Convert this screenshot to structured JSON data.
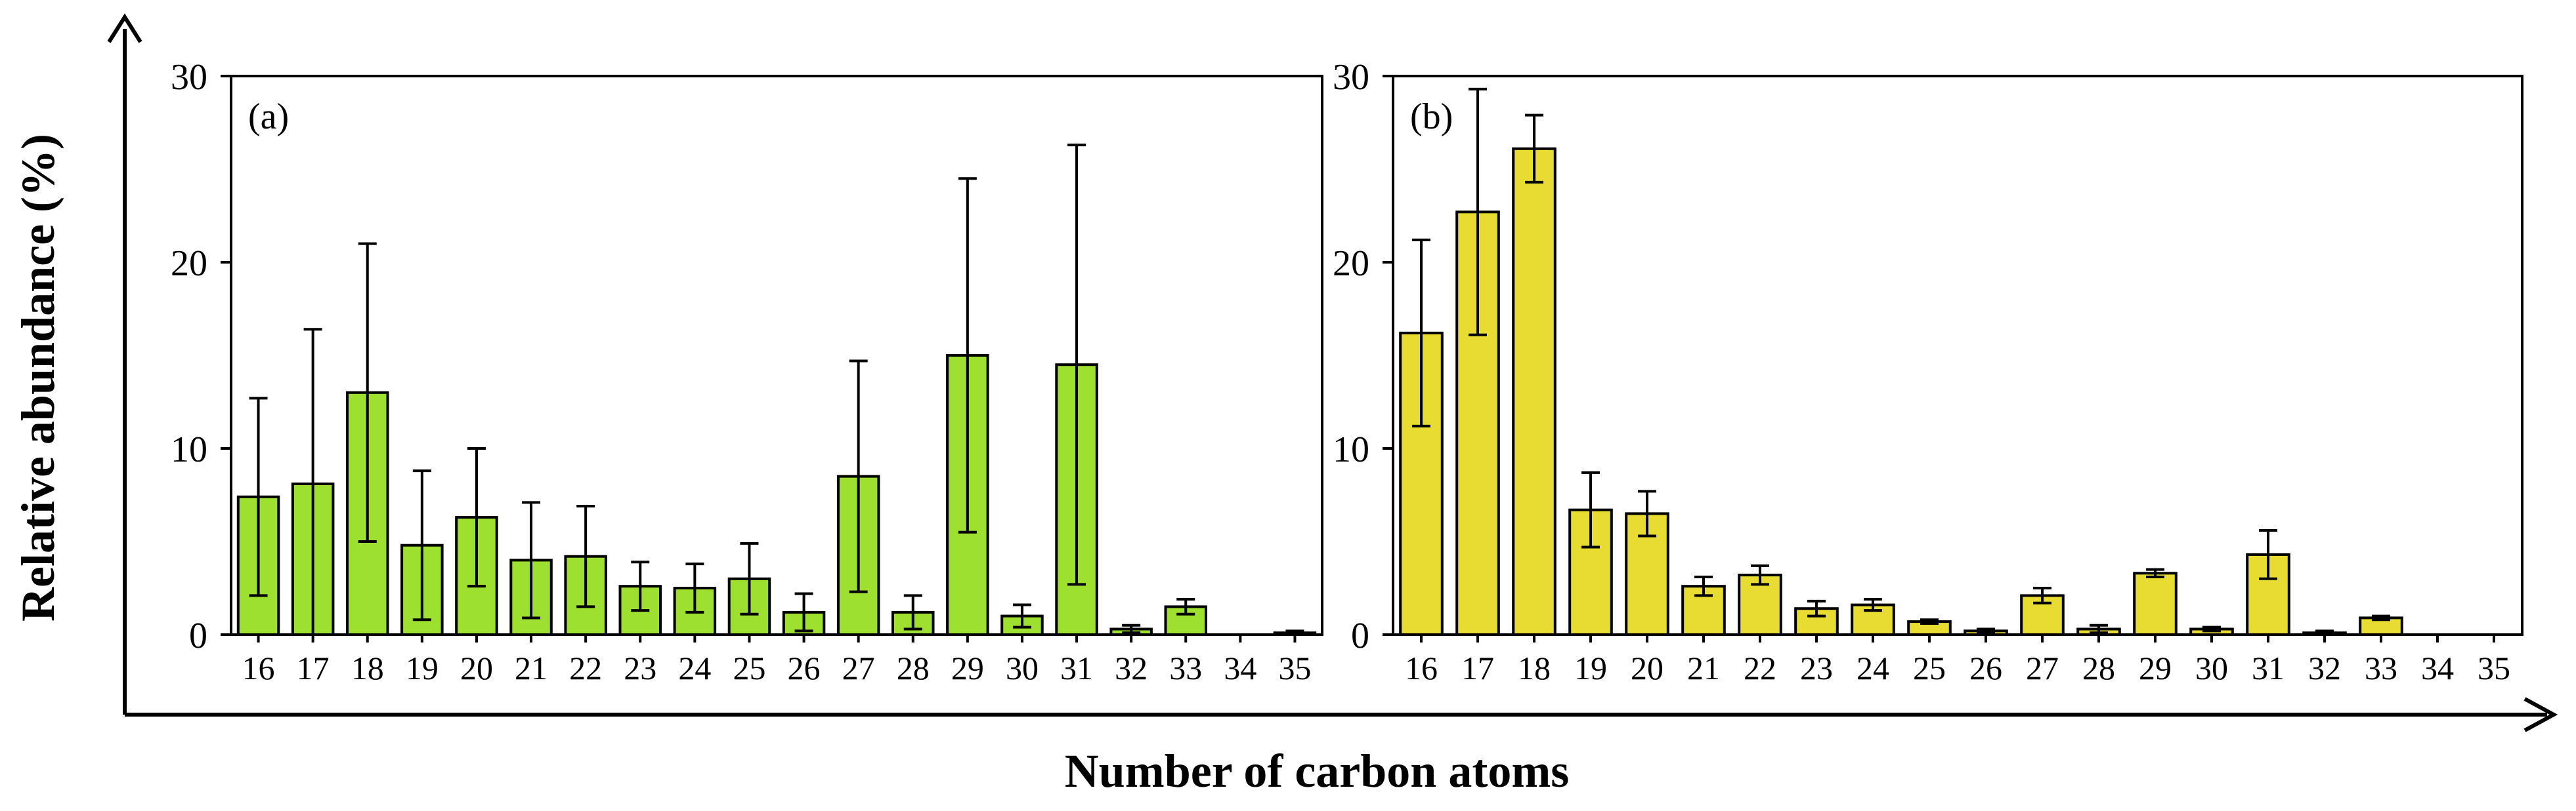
{
  "figure": {
    "ylabel": "Relative abundance (%)",
    "xlabel": "Number of carbon atoms"
  },
  "chart_data": [
    {
      "type": "bar",
      "panel_label": "(a)",
      "bar_color": "#9ee030",
      "categories": [
        "16",
        "17",
        "18",
        "19",
        "20",
        "21",
        "22",
        "23",
        "24",
        "25",
        "26",
        "27",
        "28",
        "29",
        "30",
        "31",
        "32",
        "33",
        "34",
        "35"
      ],
      "values": [
        7.4,
        8.1,
        13.0,
        4.8,
        6.3,
        4.0,
        4.2,
        2.6,
        2.5,
        3.0,
        1.2,
        8.5,
        1.2,
        15.0,
        1.0,
        14.5,
        0.3,
        1.5,
        0.0,
        0.1
      ],
      "errors": [
        5.3,
        8.3,
        8.0,
        4.0,
        3.7,
        3.1,
        2.7,
        1.3,
        1.3,
        1.9,
        1.0,
        6.2,
        0.9,
        9.5,
        0.6,
        11.8,
        0.2,
        0.4,
        0.0,
        0.1
      ],
      "ylim": [
        0,
        30
      ],
      "yticks": [
        "0",
        "10",
        "20",
        "30"
      ]
    },
    {
      "type": "bar",
      "panel_label": "(b)",
      "bar_color": "#e8dc32",
      "categories": [
        "16",
        "17",
        "18",
        "19",
        "20",
        "21",
        "22",
        "23",
        "24",
        "25",
        "26",
        "27",
        "28",
        "29",
        "30",
        "31",
        "32",
        "33",
        "34",
        "35"
      ],
      "values": [
        16.2,
        22.7,
        26.1,
        6.7,
        6.5,
        2.6,
        3.2,
        1.4,
        1.6,
        0.7,
        0.2,
        2.1,
        0.3,
        3.3,
        0.3,
        4.3,
        0.1,
        0.9,
        0.0,
        0.0
      ],
      "errors": [
        5.0,
        6.6,
        1.8,
        2.0,
        1.2,
        0.5,
        0.5,
        0.4,
        0.3,
        0.1,
        0.1,
        0.4,
        0.2,
        0.2,
        0.1,
        1.3,
        0.1,
        0.1,
        0.0,
        0.0
      ],
      "ylim": [
        0,
        30
      ],
      "yticks": [
        "0",
        "10",
        "20",
        "30"
      ]
    }
  ]
}
